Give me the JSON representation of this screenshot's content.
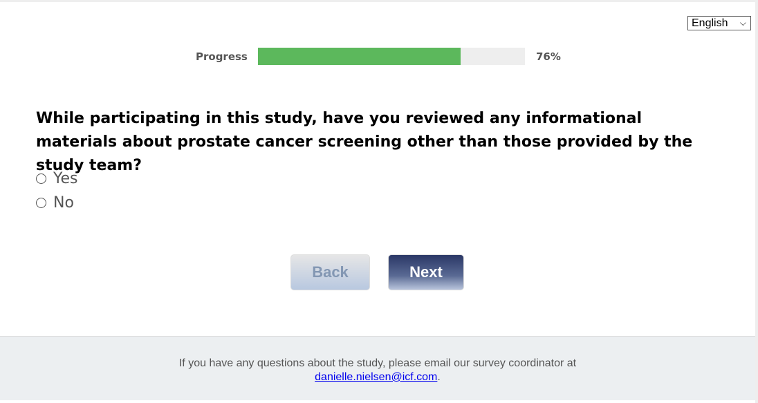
{
  "language": {
    "selected": "English"
  },
  "progress": {
    "label": "Progress",
    "value": 76,
    "text": "76%",
    "color": "#5cb85c"
  },
  "question": {
    "text": "While participating in this study, have you reviewed any informational materials about prostate cancer screening other than those provided by the study team?",
    "options": [
      "Yes",
      "No"
    ]
  },
  "nav": {
    "back": "Back",
    "next": "Next"
  },
  "footer": {
    "text": "If you have any questions about the study, please email our survey coordinator at",
    "email": "danielle.nielsen@icf.com",
    "suffix": "."
  }
}
